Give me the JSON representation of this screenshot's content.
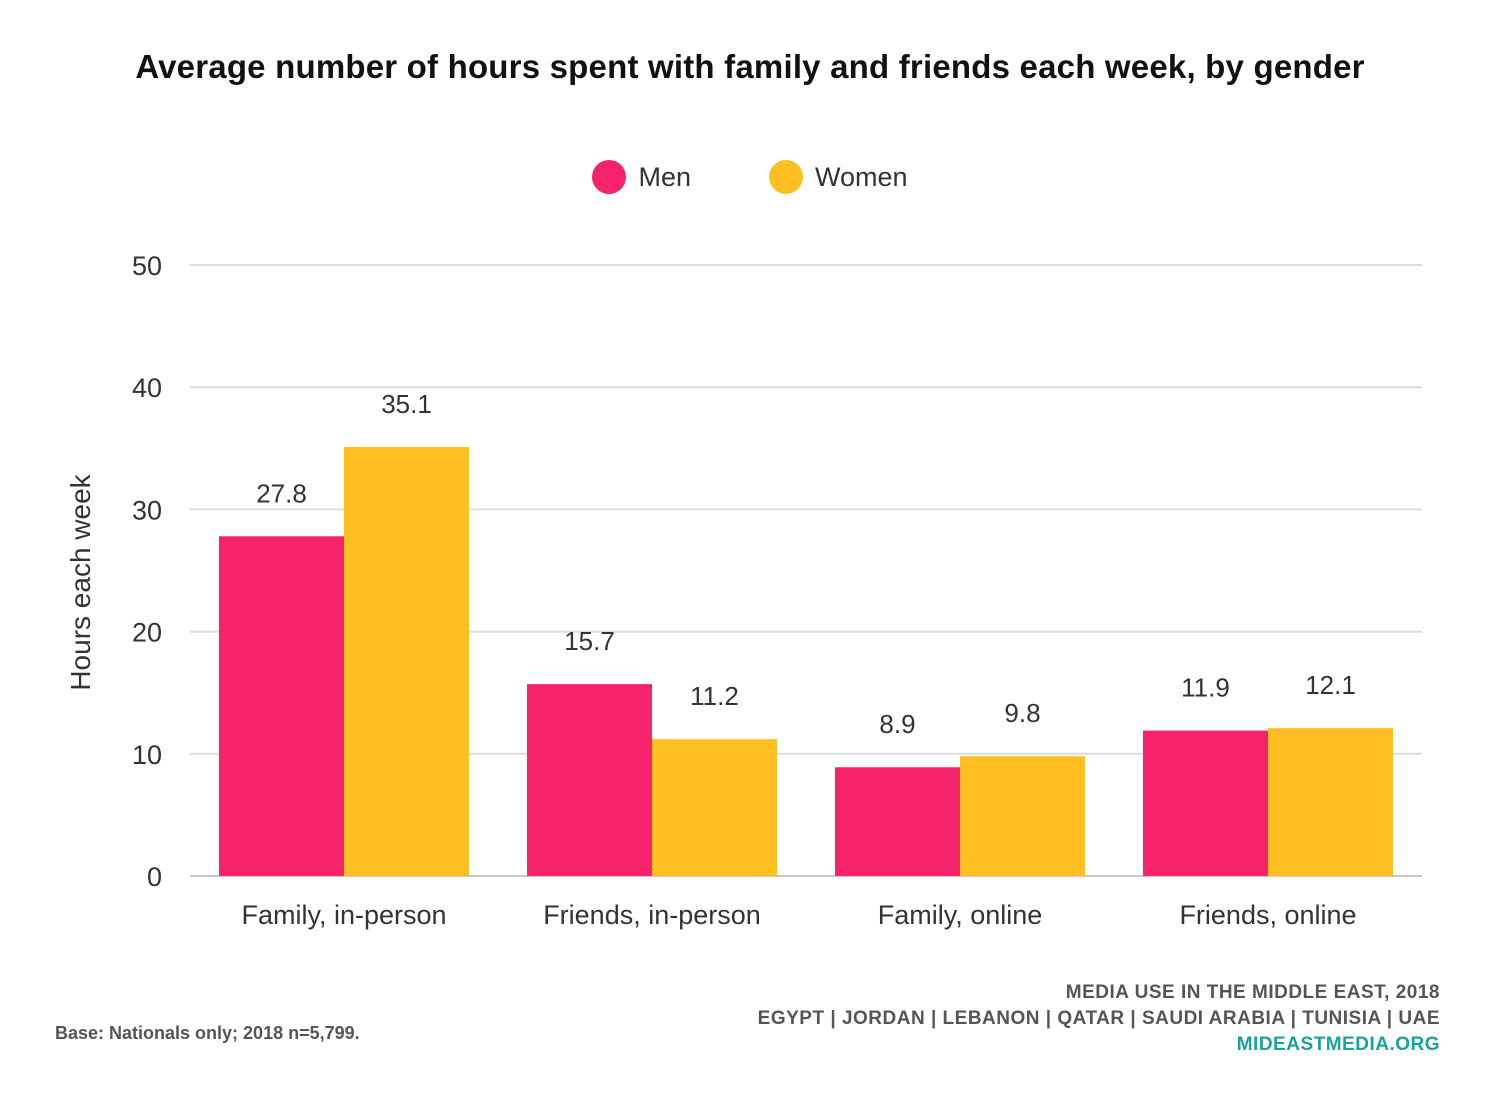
{
  "chart_data": {
    "type": "bar",
    "title": "Average number of hours spent with family and friends each week, by gender",
    "ylabel": "Hours each week",
    "xlabel": "",
    "ylim": [
      0,
      50
    ],
    "yticks": [
      0,
      10,
      20,
      30,
      40,
      50
    ],
    "grid": true,
    "legend_position": "top-center",
    "categories": [
      "Family, in-person",
      "Friends, in-person",
      "Family, online",
      "Friends, online"
    ],
    "series": [
      {
        "name": "Men",
        "color": "#f5236b",
        "values": [
          27.8,
          15.7,
          8.9,
          11.9
        ],
        "labels": [
          "27.8",
          "15.7",
          "8.9",
          "11.9"
        ]
      },
      {
        "name": "Women",
        "color": "#fdbf21",
        "values": [
          35.1,
          11.2,
          9.8,
          12.1
        ],
        "labels": [
          "35.1",
          "11.2",
          "9.8",
          "12.1"
        ]
      }
    ]
  },
  "footer": {
    "source_title": "MEDIA USE IN THE MIDDLE EAST, 2018",
    "countries": "EGYPT | JORDAN | LEBANON | QATAR | SAUDI ARABIA | TUNISIA | UAE",
    "site": "MIDEASTMEDIA.ORG",
    "base_note": "Base: Nationals only; 2018 n=5,799."
  }
}
